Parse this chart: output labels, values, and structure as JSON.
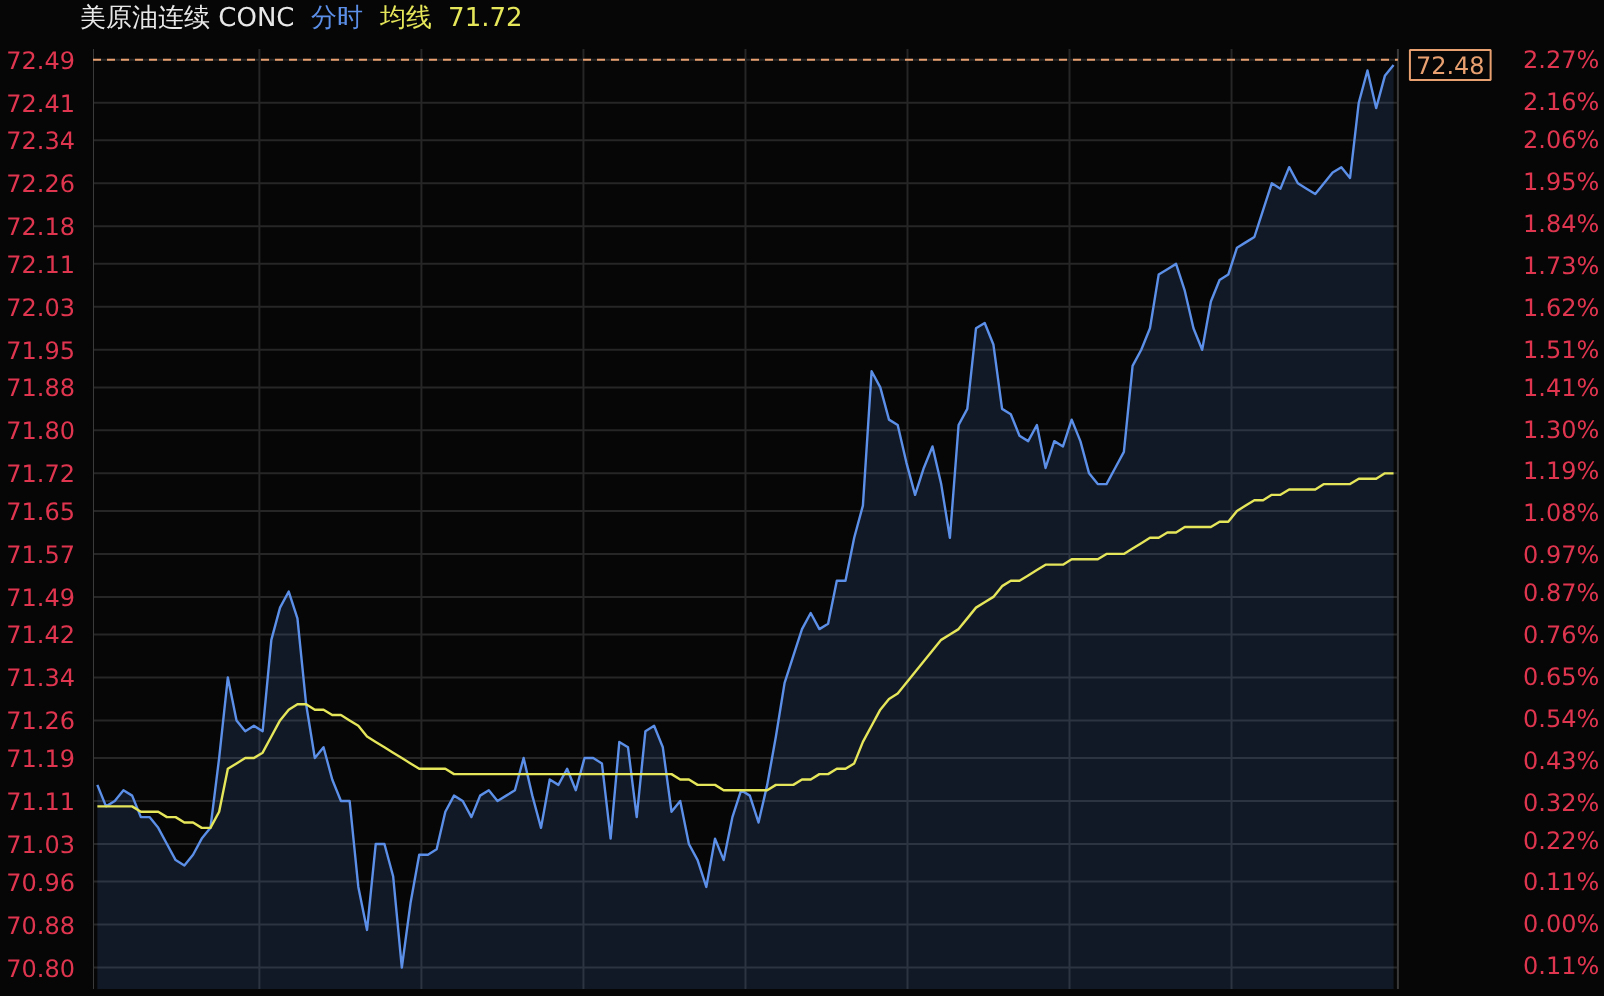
{
  "chart_data": {
    "type": "area",
    "title": "美原油连续 CONC",
    "categories": [
      null,
      null,
      null,
      null,
      null,
      null,
      null,
      null,
      null,
      null,
      null,
      null,
      null,
      null,
      null,
      null,
      null,
      null,
      null,
      null,
      null,
      null,
      null,
      null,
      null,
      null,
      null,
      null,
      null,
      null,
      null,
      null,
      null,
      null,
      null,
      null,
      null,
      null,
      null,
      null,
      null,
      null,
      null,
      null,
      null,
      null,
      null,
      null,
      null,
      null,
      null,
      null,
      null,
      null,
      null,
      null,
      null,
      null,
      null,
      null,
      null,
      null,
      null,
      null,
      null,
      null,
      null,
      null,
      null,
      null,
      null,
      null,
      null,
      null,
      null,
      null,
      null,
      null,
      null,
      null,
      null,
      null,
      null,
      null,
      null,
      null,
      null,
      null,
      null,
      null,
      null,
      null,
      null,
      null,
      null,
      null,
      null,
      null,
      null,
      null,
      null,
      null,
      null,
      null,
      null,
      null,
      null,
      null,
      null,
      null,
      null,
      null,
      null,
      null,
      null,
      null,
      null,
      null,
      null,
      null,
      null,
      null,
      null,
      null,
      null,
      null,
      null,
      null,
      null,
      null,
      null,
      null,
      null,
      null,
      null,
      null,
      null,
      null,
      null,
      null,
      null,
      null,
      null,
      null,
      null,
      null,
      null,
      null,
      null,
      null
    ],
    "series": [
      {
        "name": "分时",
        "color": "#5b8fe8",
        "values": [
          71.14,
          71.1,
          71.11,
          71.13,
          71.12,
          71.08,
          71.08,
          71.06,
          71.03,
          71.0,
          70.99,
          71.01,
          71.04,
          71.06,
          71.19,
          71.34,
          71.26,
          71.24,
          71.25,
          71.24,
          71.41,
          71.47,
          71.5,
          71.45,
          71.29,
          71.19,
          71.21,
          71.15,
          71.11,
          71.11,
          70.95,
          70.87,
          71.03,
          71.03,
          70.97,
          70.8,
          70.92,
          71.01,
          71.01,
          71.02,
          71.09,
          71.12,
          71.11,
          71.08,
          71.12,
          71.13,
          71.11,
          71.12,
          71.13,
          71.19,
          71.12,
          71.06,
          71.15,
          71.14,
          71.17,
          71.13,
          71.19,
          71.19,
          71.18,
          71.04,
          71.22,
          71.21,
          71.08,
          71.24,
          71.25,
          71.21,
          71.09,
          71.11,
          71.03,
          71.0,
          70.95,
          71.04,
          71.0,
          71.08,
          71.13,
          71.12,
          71.07,
          71.14,
          71.23,
          71.33,
          71.38,
          71.43,
          71.46,
          71.43,
          71.44,
          71.52,
          71.52,
          71.6,
          71.66,
          71.91,
          71.88,
          71.82,
          71.81,
          71.74,
          71.68,
          71.73,
          71.77,
          71.7,
          71.6,
          71.81,
          71.84,
          71.99,
          72.0,
          71.96,
          71.84,
          71.83,
          71.79,
          71.78,
          71.81,
          71.73,
          71.78,
          71.77,
          71.82,
          71.78,
          71.72,
          71.7,
          71.7,
          71.73,
          71.76,
          71.92,
          71.95,
          71.99,
          72.09,
          72.1,
          72.11,
          72.06,
          71.99,
          71.95,
          72.04,
          72.08,
          72.09,
          72.14,
          72.15,
          72.16,
          72.21,
          72.26,
          72.25,
          72.29,
          72.26,
          72.25,
          72.24,
          72.26,
          72.28,
          72.29,
          72.27,
          72.41,
          72.47,
          72.4,
          72.46,
          72.48
        ]
      },
      {
        "name": "均线",
        "type": "line",
        "color": "#e6e65a",
        "values": [
          71.1,
          71.1,
          71.1,
          71.1,
          71.1,
          71.09,
          71.09,
          71.09,
          71.08,
          71.08,
          71.07,
          71.07,
          71.06,
          71.06,
          71.09,
          71.17,
          71.18,
          71.19,
          71.19,
          71.2,
          71.23,
          71.26,
          71.28,
          71.29,
          71.29,
          71.28,
          71.28,
          71.27,
          71.27,
          71.26,
          71.25,
          71.23,
          71.22,
          71.21,
          71.2,
          71.19,
          71.18,
          71.17,
          71.17,
          71.17,
          71.17,
          71.16,
          71.16,
          71.16,
          71.16,
          71.16,
          71.16,
          71.16,
          71.16,
          71.16,
          71.16,
          71.16,
          71.16,
          71.16,
          71.16,
          71.16,
          71.16,
          71.16,
          71.16,
          71.16,
          71.16,
          71.16,
          71.16,
          71.16,
          71.16,
          71.16,
          71.16,
          71.15,
          71.15,
          71.14,
          71.14,
          71.14,
          71.13,
          71.13,
          71.13,
          71.13,
          71.13,
          71.13,
          71.14,
          71.14,
          71.14,
          71.15,
          71.15,
          71.16,
          71.16,
          71.17,
          71.17,
          71.18,
          71.22,
          71.25,
          71.28,
          71.3,
          71.31,
          71.33,
          71.35,
          71.37,
          71.39,
          71.41,
          71.42,
          71.43,
          71.45,
          71.47,
          71.48,
          71.49,
          71.51,
          71.52,
          71.52,
          71.53,
          71.54,
          71.55,
          71.55,
          71.55,
          71.56,
          71.56,
          71.56,
          71.56,
          71.57,
          71.57,
          71.57,
          71.58,
          71.59,
          71.6,
          71.6,
          71.61,
          71.61,
          71.62,
          71.62,
          71.62,
          71.62,
          71.63,
          71.63,
          71.65,
          71.66,
          71.67,
          71.67,
          71.68,
          71.68,
          71.69,
          71.69,
          71.69,
          71.69,
          71.7,
          71.7,
          71.7,
          71.7,
          71.71,
          71.71,
          71.71,
          71.72,
          71.72
        ]
      }
    ],
    "ylim": [
      70.76,
      72.51
    ],
    "yticks": [
      72.49,
      72.41,
      72.34,
      72.26,
      72.18,
      72.11,
      72.03,
      71.95,
      71.88,
      {
        "value": 71.8,
        "label": "71.80"
      },
      71.72,
      71.65,
      71.57,
      71.49,
      71.42,
      71.34,
      71.26,
      71.19,
      71.11,
      71.03,
      70.96,
      70.88,
      {
        "value": 70.8,
        "label": "70.80"
      }
    ],
    "y2lim": [
      -0.17,
      2.3
    ],
    "y2ticks": [
      {
        "value": 2.27,
        "label": "2.27%"
      },
      {
        "value": 2.16,
        "label": "2.16%"
      },
      {
        "value": 2.06,
        "label": "2.06%"
      },
      {
        "value": 1.95,
        "label": "1.95%"
      },
      {
        "value": 1.84,
        "label": "1.84%"
      },
      {
        "value": 1.73,
        "label": "1.73%"
      },
      {
        "value": 1.62,
        "label": "1.62%"
      },
      {
        "value": 1.51,
        "label": "1.51%"
      },
      {
        "value": 1.41,
        "label": "1.41%"
      },
      {
        "value": 1.3,
        "label": "1.30%"
      },
      {
        "value": 1.19,
        "label": "1.19%"
      },
      {
        "value": 1.08,
        "label": "1.08%"
      },
      {
        "value": 0.97,
        "label": "0.97%"
      },
      {
        "value": 0.87,
        "label": "0.87%"
      },
      {
        "value": 0.76,
        "label": "0.76%"
      },
      {
        "value": 0.65,
        "label": "0.65%"
      },
      {
        "value": 0.54,
        "label": "0.54%"
      },
      {
        "value": 0.43,
        "label": "0.43%"
      },
      {
        "value": 0.32,
        "label": "0.32%"
      },
      {
        "value": 0.22,
        "label": "0.22%"
      },
      {
        "value": 0.11,
        "label": "0.11%"
      },
      {
        "value": 0.0,
        "label": "0.00%"
      },
      {
        "value": -0.11,
        "label": "0.11%"
      }
    ],
    "ref_lines": [
      {
        "axis": "y",
        "value": 72.49,
        "color": "#e8a070",
        "line_style": "dashed"
      }
    ],
    "annotations": [
      "71.72",
      "72.48"
    ],
    "grid": true,
    "legend": "top left"
  }
}
